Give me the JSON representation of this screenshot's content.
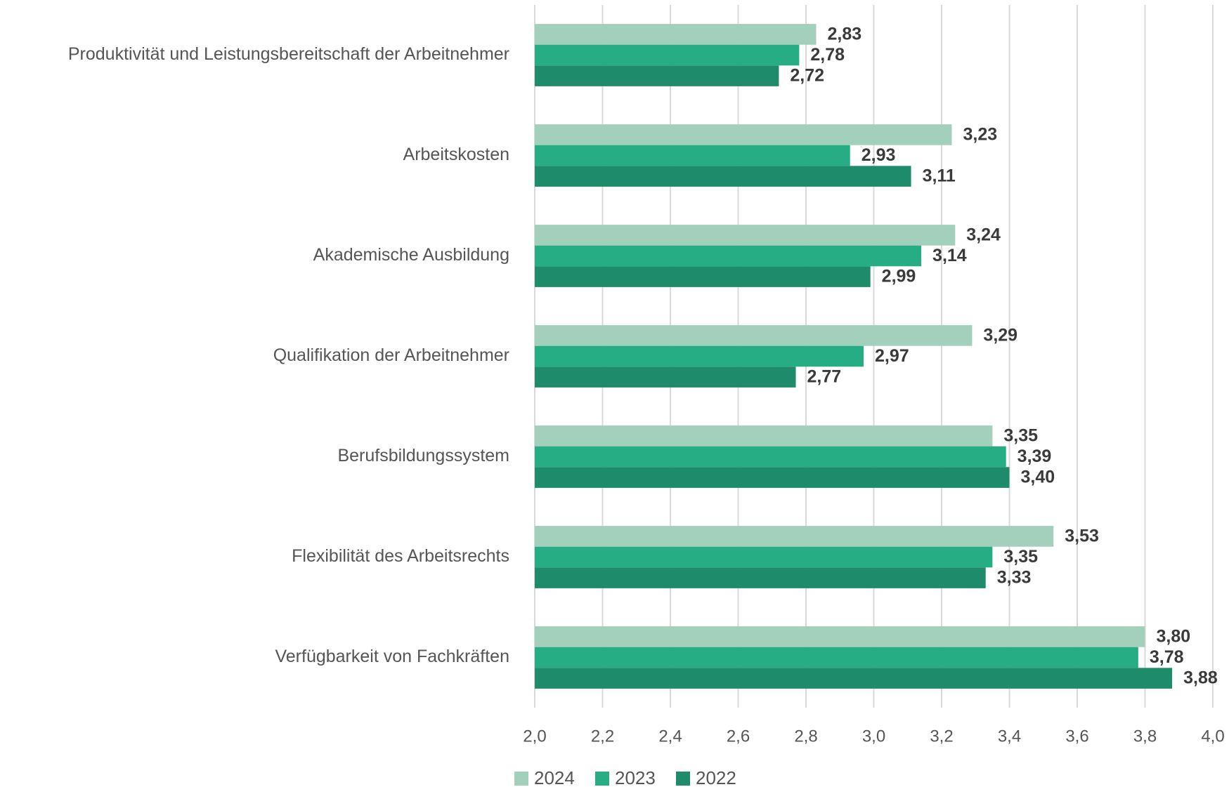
{
  "chart_data": {
    "type": "bar",
    "orientation": "horizontal",
    "categories": [
      "Produktivität und Leistungsbereitschaft der Arbeitnehmer",
      "Arbeitskosten",
      "Akademische Ausbildung",
      "Qualifikation der Arbeitnehmer",
      "Berufsbildungssystem",
      "Flexibilität des Arbeitsrechts",
      "Verfügbarkeit von Fachkräften"
    ],
    "series": [
      {
        "name": "2024",
        "color": "#a3d0bc",
        "values": [
          2.83,
          3.23,
          3.24,
          3.29,
          3.35,
          3.53,
          3.8
        ],
        "value_labels": [
          "2,83",
          "3,23",
          "3,24",
          "3,29",
          "3,35",
          "3,53",
          "3,80"
        ]
      },
      {
        "name": "2023",
        "color": "#27ad84",
        "values": [
          2.78,
          2.93,
          3.14,
          2.97,
          3.39,
          3.35,
          3.78
        ],
        "value_labels": [
          "2,78",
          "2,93",
          "3,14",
          "2,97",
          "3,39",
          "3,35",
          "3,78"
        ]
      },
      {
        "name": "2022",
        "color": "#1e8c6a",
        "values": [
          2.72,
          3.11,
          2.99,
          2.77,
          3.4,
          3.33,
          3.88
        ],
        "value_labels": [
          "2,72",
          "3,11",
          "2,99",
          "2,77",
          "3,40",
          "3,33",
          "3,88"
        ]
      }
    ],
    "xlim": [
      2.0,
      4.0
    ],
    "xticks": [
      {
        "value": 2.0,
        "label": "2,0"
      },
      {
        "value": 2.2,
        "label": "2,2"
      },
      {
        "value": 2.4,
        "label": "2,4"
      },
      {
        "value": 2.6,
        "label": "2,6"
      },
      {
        "value": 2.8,
        "label": "2,8"
      },
      {
        "value": 3.0,
        "label": "3,0"
      },
      {
        "value": 3.2,
        "label": "3,2"
      },
      {
        "value": 3.4,
        "label": "3,4"
      },
      {
        "value": 3.6,
        "label": "3,6"
      },
      {
        "value": 3.8,
        "label": "3,8"
      },
      {
        "value": 4.0,
        "label": "4,0"
      }
    ],
    "grid": true,
    "legend": "bottom"
  }
}
